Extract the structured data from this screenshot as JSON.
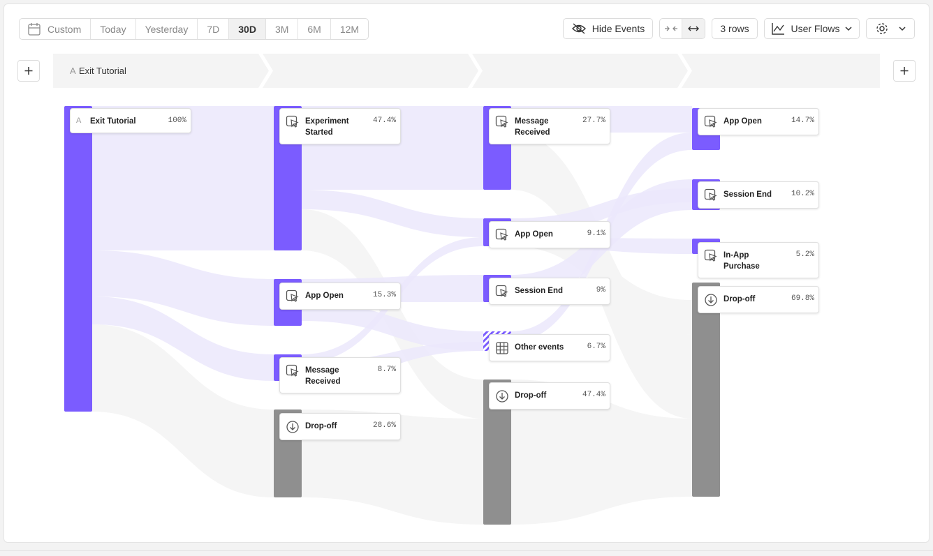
{
  "toolbar": {
    "date_ranges": [
      "Custom",
      "Today",
      "Yesterday",
      "7D",
      "30D",
      "3M",
      "6M",
      "12M"
    ],
    "hide_events": "Hide Events",
    "rows": "3 rows",
    "view": "User Flows"
  },
  "step": {
    "marker": "A",
    "label": "Exit Tutorial"
  },
  "columns": [
    {
      "nodes": [
        {
          "marker": "A",
          "label": "Exit Tutorial",
          "pct": "100%"
        }
      ]
    },
    {
      "nodes": [
        {
          "label": "Experiment Started",
          "pct": "47.4%"
        },
        {
          "label": "App Open",
          "pct": "15.3%"
        },
        {
          "label": "Message Received",
          "pct": "8.7%"
        },
        {
          "label": "Drop-off",
          "pct": "28.6%"
        }
      ]
    },
    {
      "nodes": [
        {
          "label": "Message Received",
          "pct": "27.7%"
        },
        {
          "label": "App Open",
          "pct": "9.1%"
        },
        {
          "label": "Session End",
          "pct": "9%"
        },
        {
          "label": "Other events",
          "pct": "6.7%"
        },
        {
          "label": "Drop-off",
          "pct": "47.4%"
        }
      ]
    },
    {
      "nodes": [
        {
          "label": "App Open",
          "pct": "14.7%"
        },
        {
          "label": "Session End",
          "pct": "10.2%"
        },
        {
          "label": "In-App Purchase",
          "pct": "5.2%"
        },
        {
          "label": "Drop-off",
          "pct": "69.8%"
        }
      ]
    }
  ]
}
